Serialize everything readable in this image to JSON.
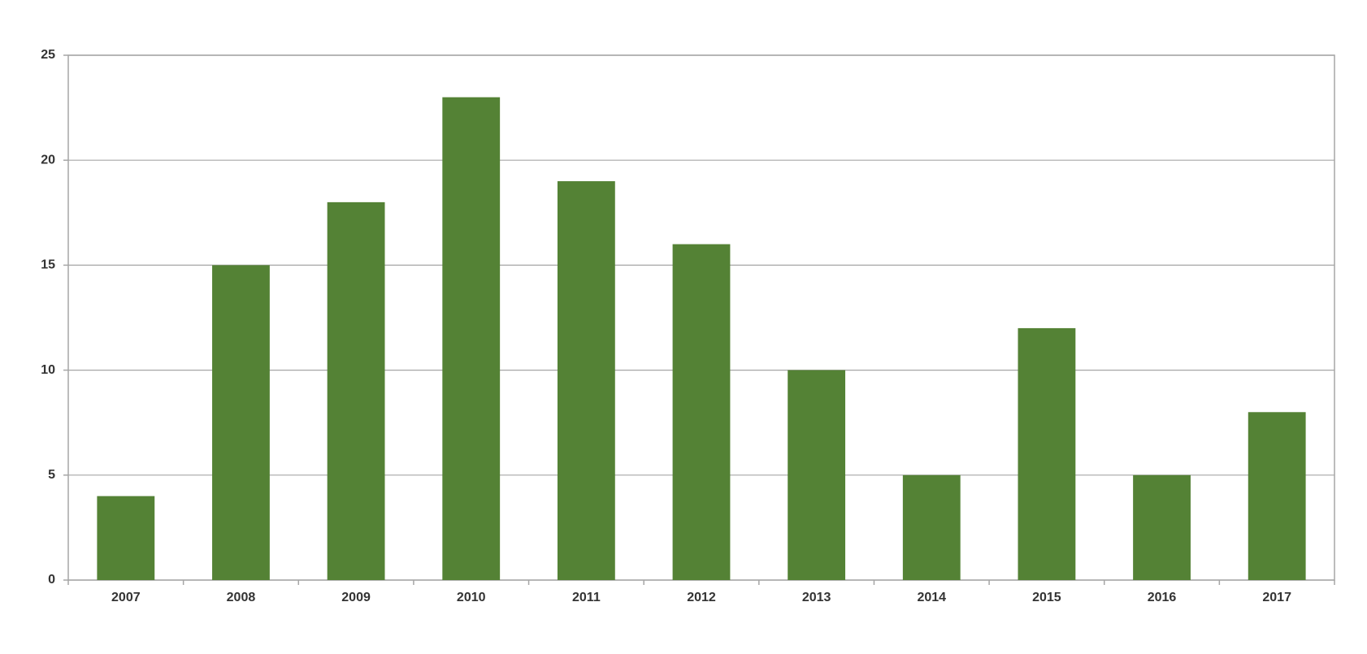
{
  "chart_data": {
    "type": "bar",
    "categories": [
      "2007",
      "2008",
      "2009",
      "2010",
      "2011",
      "2012",
      "2013",
      "2014",
      "2015",
      "2016",
      "2017"
    ],
    "values": [
      4,
      15,
      18,
      23,
      19,
      16,
      10,
      5,
      12,
      5,
      8
    ],
    "color": "#548235",
    "ylim": [
      0,
      25
    ],
    "yticks": [
      0,
      5,
      10,
      15,
      20,
      25
    ],
    "grid": true
  }
}
